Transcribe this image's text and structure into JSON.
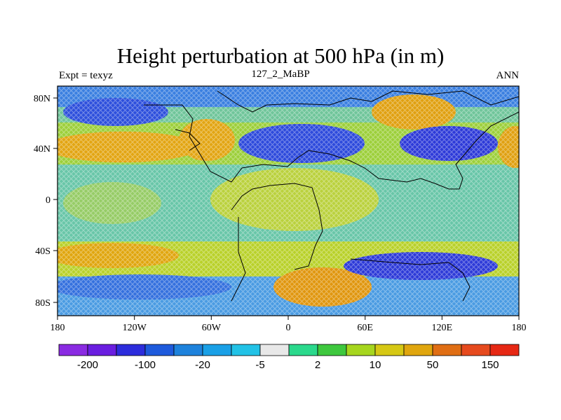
{
  "title": "Height perturbation at 500 hPa (in m)",
  "left_label": "Expt = texyz",
  "center_label": "127_2_MaBP",
  "right_label": "ANN",
  "lat_ticks": [
    "80N",
    "40N",
    "0",
    "40S",
    "80S"
  ],
  "lon_ticks": [
    "180",
    "120W",
    "60W",
    "0",
    "60E",
    "120E",
    "180"
  ],
  "colorbar": {
    "colors": [
      "#8a2be2",
      "#6a1ee0",
      "#2d2ddc",
      "#1e5adc",
      "#1e82dc",
      "#1aa0e6",
      "#22c2e6",
      "#e8e8e8",
      "#2bd98c",
      "#3ec83e",
      "#a6d61e",
      "#d6c814",
      "#e0a60e",
      "#e06e14",
      "#e64a1e",
      "#e62814"
    ],
    "labels": [
      "-200",
      "-100",
      "-20",
      "-5",
      "2",
      "10",
      "50",
      "150"
    ]
  },
  "colors": {
    "positive": "#d6c814",
    "strong_positive": "#e0a60e",
    "negative": "#2d4adc",
    "strong_negative": "#2d2ddc",
    "neutral": "#6fc0a0",
    "coast": "#000000"
  }
}
